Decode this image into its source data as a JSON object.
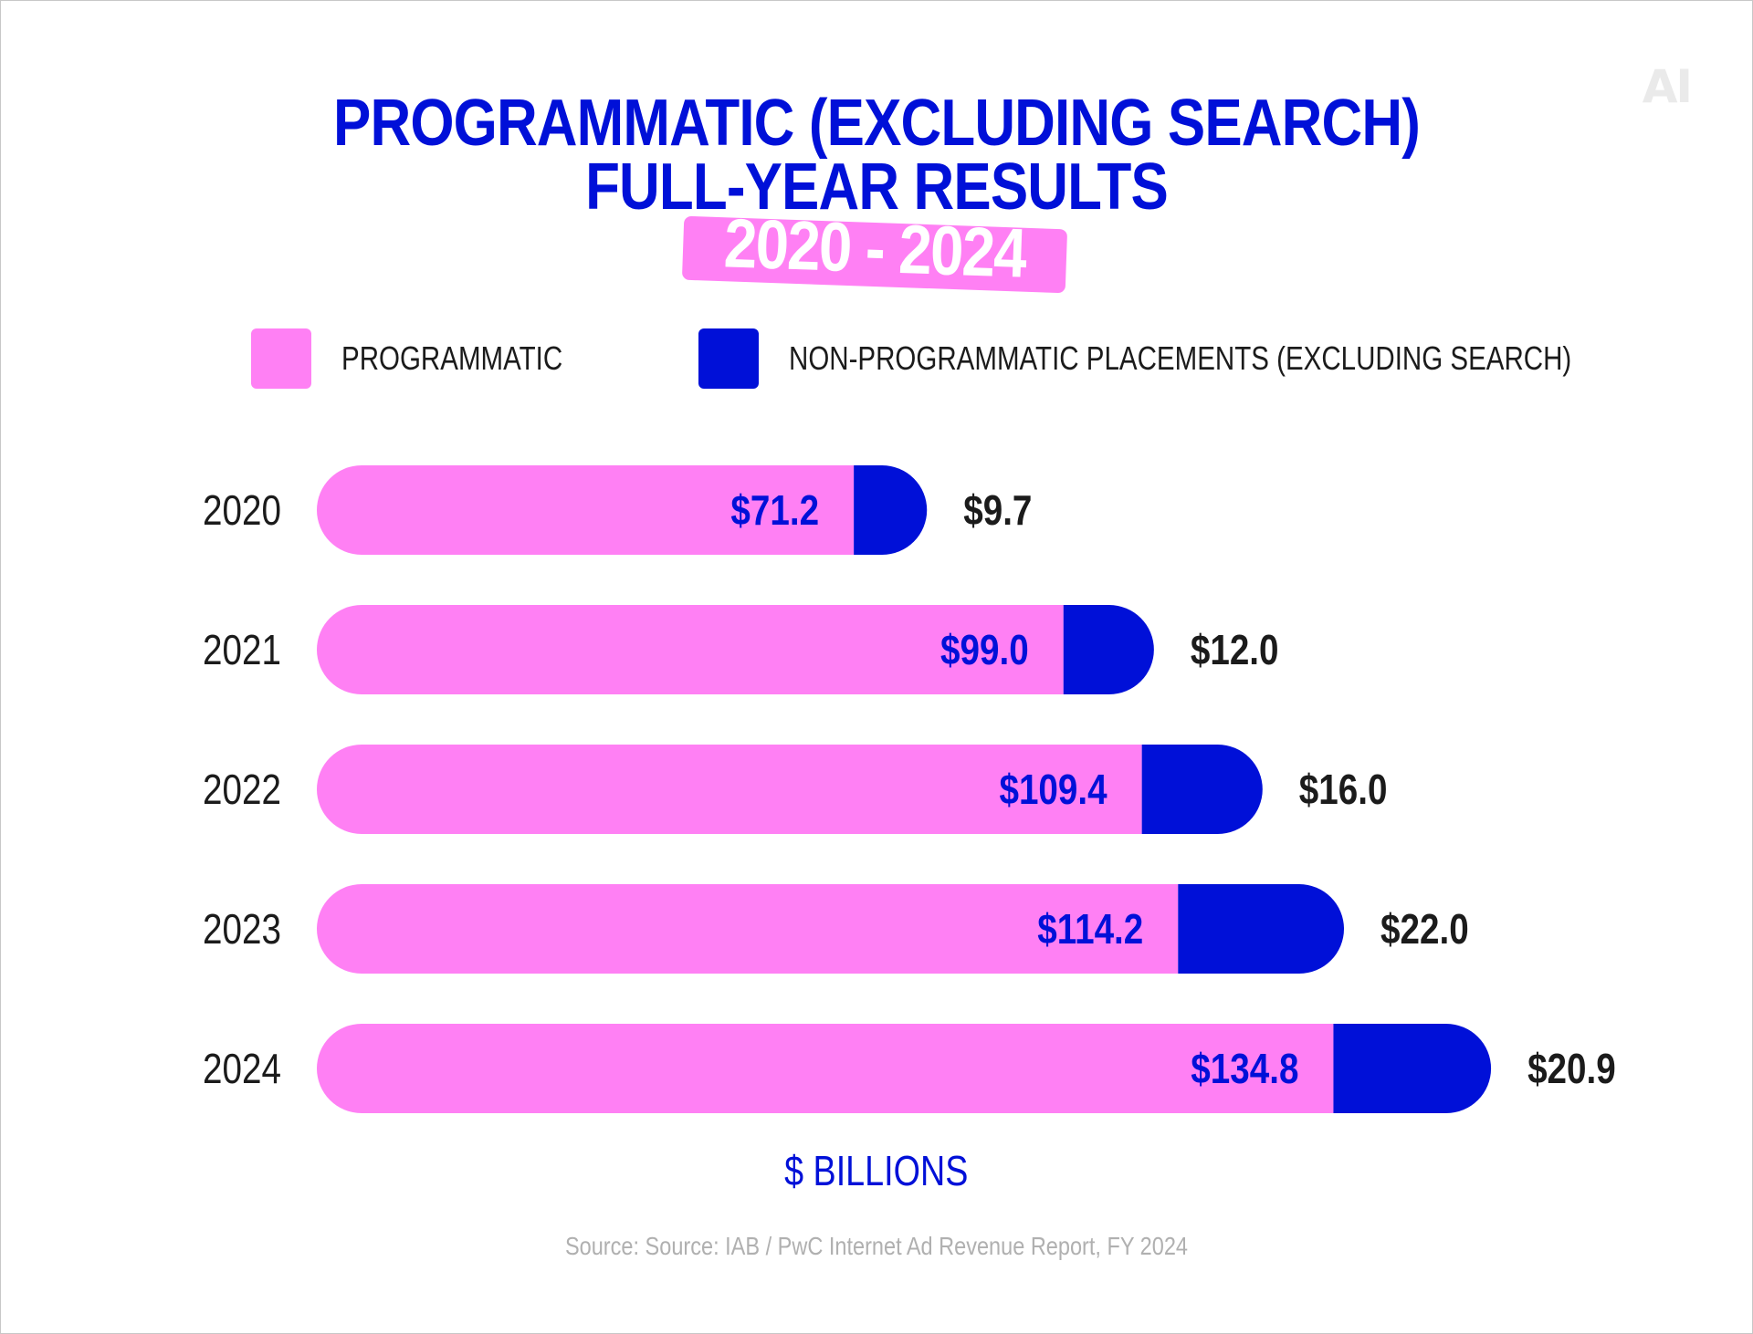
{
  "header": {
    "title_line1": "PROGRAMMATIC (EXCLUDING SEARCH)",
    "title_line2": "FULL-YEAR RESULTS",
    "badge": "2020 - 2024",
    "logo_text": "AI"
  },
  "legend": {
    "items": [
      {
        "label": "PROGRAMMATIC",
        "color": "#ff80f4"
      },
      {
        "label": "NON-PROGRAMMATIC PLACEMENTS (EXCLUDING SEARCH)",
        "color": "#0010d8"
      }
    ]
  },
  "footer": {
    "unit_label": "$ BILLIONS",
    "source": "Source: Source: IAB / PwC Internet Ad Revenue Report, FY 2024"
  },
  "chart_data": {
    "type": "bar",
    "orientation": "horizontal",
    "stacked": true,
    "title": "PROGRAMMATIC (EXCLUDING SEARCH) FULL-YEAR RESULTS",
    "subtitle": "2020 - 2024",
    "xlabel": "$ BILLIONS",
    "ylabel": "",
    "categories": [
      "2020",
      "2021",
      "2022",
      "2023",
      "2024"
    ],
    "series": [
      {
        "name": "PROGRAMMATIC",
        "color": "#ff80f4",
        "label_color": "#0010d8",
        "values": [
          71.2,
          99.0,
          109.4,
          114.2,
          134.8
        ],
        "labels": [
          "$71.2",
          "$99.0",
          "$109.4",
          "$114.2",
          "$134.8"
        ]
      },
      {
        "name": "NON-PROGRAMMATIC PLACEMENTS (EXCLUDING SEARCH)",
        "color": "#0010d8",
        "label_color": "#1b1b1b",
        "values": [
          9.7,
          12.0,
          16.0,
          22.0,
          20.9
        ],
        "labels": [
          "$9.7",
          "$12.0",
          "$16.0",
          "$22.0",
          "$20.9"
        ]
      }
    ],
    "grid": false,
    "legend_position": "top"
  }
}
